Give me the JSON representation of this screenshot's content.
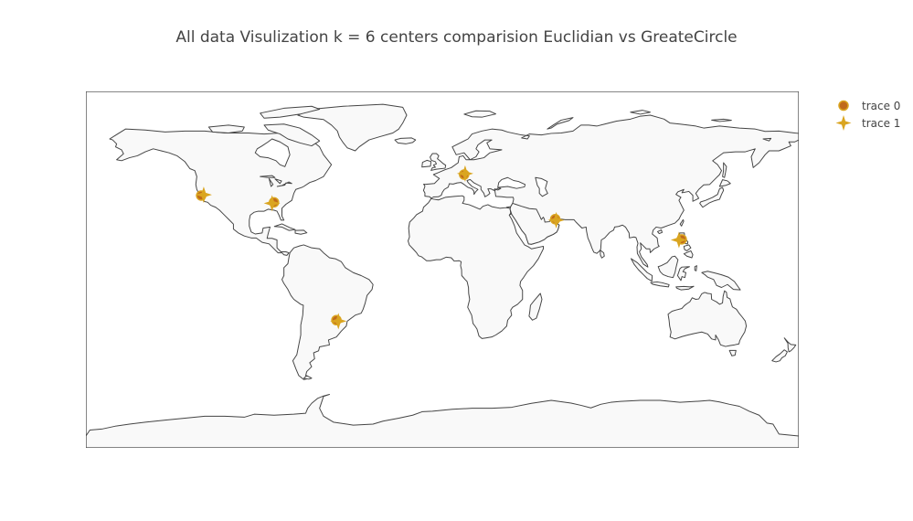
{
  "title": "All data Visulization k = 6 centers comparision Euclidian vs GreateCircle",
  "map": {
    "projection": "equirectangular",
    "lon_range": [
      -180,
      180
    ],
    "lat_range": [
      -90,
      90
    ],
    "land_color": "#f9f9f9",
    "coast_color": "#444444",
    "ocean_color": "#ffffff"
  },
  "legend": {
    "placement": "top-right",
    "items": [
      {
        "label": "trace 0",
        "symbol": "circle"
      },
      {
        "label": "trace 1",
        "symbol": "star-4"
      }
    ]
  },
  "chart_data": {
    "type": "scatter",
    "series": [
      {
        "name": "trace 0",
        "color": "#c06a1a",
        "symbol": "circle",
        "points": [
          {
            "lon": -121.8,
            "lat": 37.4
          },
          {
            "lon": -85.0,
            "lat": 34.0
          },
          {
            "lon": 11.0,
            "lat": 48.0
          },
          {
            "lon": 57.0,
            "lat": 25.5
          },
          {
            "lon": 120.9,
            "lat": 15.3
          },
          {
            "lon": -53.5,
            "lat": -25.5
          }
        ]
      },
      {
        "name": "trace 1",
        "color": "#daa520",
        "symbol": "star-4",
        "points": [
          {
            "lon": -120.5,
            "lat": 37.8
          },
          {
            "lon": -86.0,
            "lat": 33.5
          },
          {
            "lon": 11.5,
            "lat": 48.5
          },
          {
            "lon": 57.5,
            "lat": 25.0
          },
          {
            "lon": 119.5,
            "lat": 15.0
          },
          {
            "lon": -52.5,
            "lat": -26.0
          }
        ]
      }
    ]
  }
}
